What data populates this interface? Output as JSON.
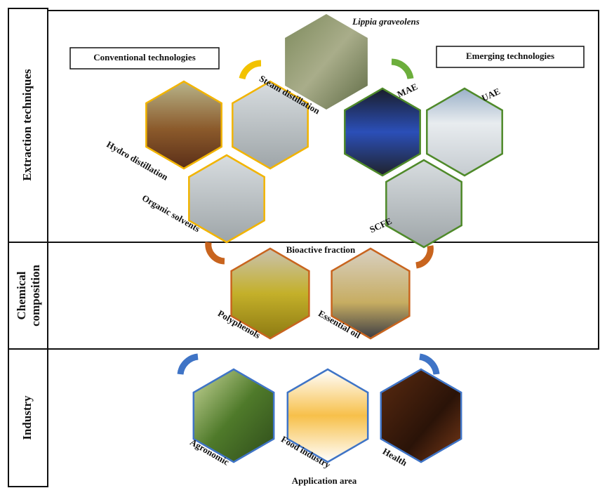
{
  "sections": [
    {
      "label": "Extraction techniques"
    },
    {
      "label": "Chemical composition"
    },
    {
      "label": "Industry"
    }
  ],
  "source": "Lippia graveolens",
  "conventional": {
    "title": "Conventional technologies",
    "items": [
      "Steam distillation",
      "Hydro distillation",
      "Organic solvents"
    ]
  },
  "emerging": {
    "title": "Emerging technologies",
    "items": [
      "MAE",
      "UAE",
      "SCFE"
    ]
  },
  "chemical": {
    "title": "Bioactive fraction",
    "items": [
      "Polyphenols",
      "Essential oil"
    ]
  },
  "industry": {
    "title": "Application area",
    "items": [
      "Agronomic",
      "Food industry",
      "Health"
    ]
  }
}
